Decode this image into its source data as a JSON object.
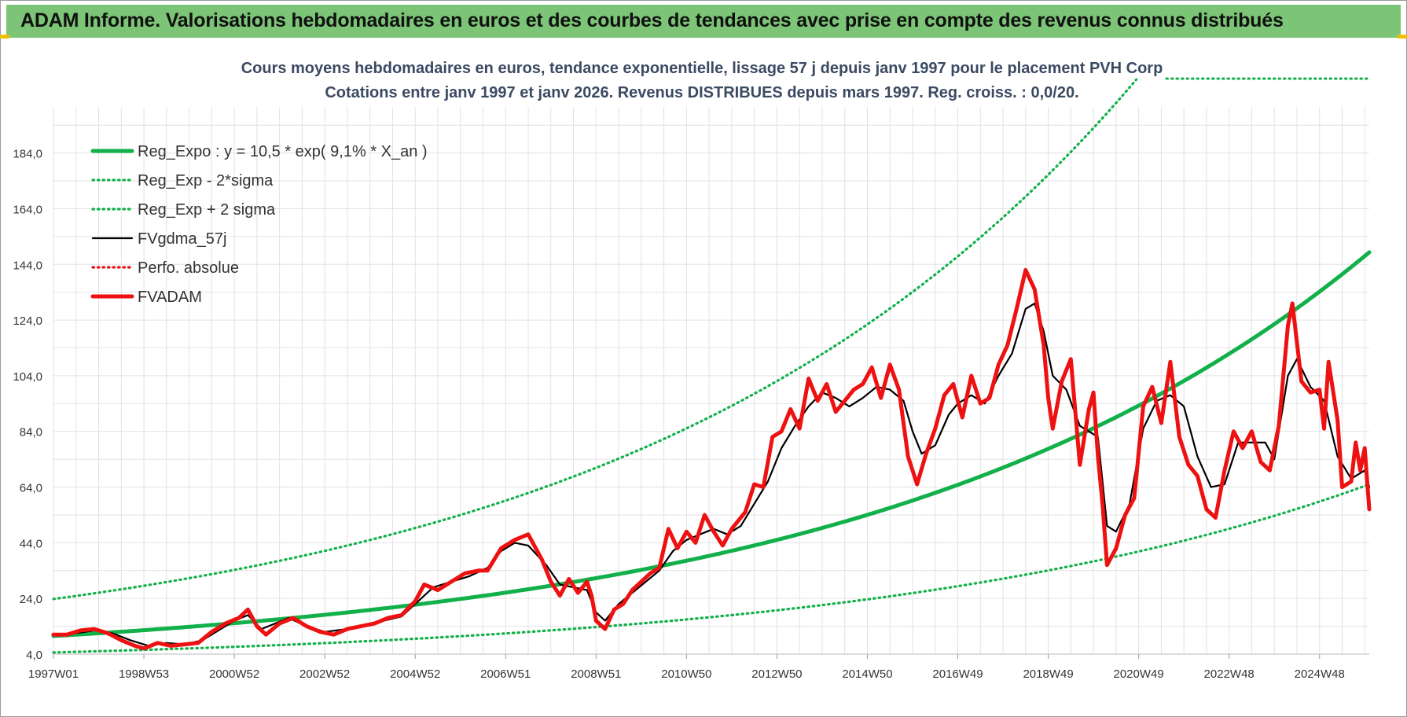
{
  "banner": {
    "title": "ADAM Informe. Valorisations hebdomadaires en euros et des courbes de tendances avec prise en compte des revenus connus distribués"
  },
  "chart_data": {
    "type": "line",
    "title": "Cours moyens hebdomadaires en euros, tendance exponentielle, lissage 57 j depuis janv 1997 pour le placement PVH Corp",
    "subtitle": "Cotations entre janv 1997 et janv 2026. Revenus DISTRIBUES depuis mars 1997.  Reg. croiss. : 0,0/20.",
    "xlabel": "",
    "ylabel": "",
    "x_ticks": [
      "1997W01",
      "1998W53",
      "2000W52",
      "2002W52",
      "2004W52",
      "2006W51",
      "2008W51",
      "2010W50",
      "2012W50",
      "2014W50",
      "2016W49",
      "2018W49",
      "2020W49",
      "2022W48",
      "2024W48"
    ],
    "y_ticks": [
      "4,0",
      "24,0",
      "44,0",
      "64,0",
      "84,0",
      "104,0",
      "124,0",
      "144,0",
      "164,0",
      "184,0"
    ],
    "ylim": [
      4,
      200
    ],
    "xlim": [
      1997.0,
      2026.1
    ],
    "grid": true,
    "legend_position": "top-left",
    "series": [
      {
        "name": "Reg_Expo : y = 10,5 * exp( 9,1% *  X_an )",
        "color": "#12b04a",
        "style": "solid-thick",
        "formula": {
          "a": 10.5,
          "b": 0.091,
          "start": 1997.0
        }
      },
      {
        "name": "Reg_Exp - 2*sigma",
        "color": "#12b04a",
        "style": "dotted",
        "formula": {
          "a": 4.6,
          "b": 0.091,
          "start": 1997.0
        }
      },
      {
        "name": "Reg_Exp + 2 sigma",
        "color": "#12b04a",
        "style": "dotted",
        "formula": {
          "a": 23.8,
          "b": 0.091,
          "start": 1997.0
        }
      },
      {
        "name": "FVgdma_57j",
        "color": "#000000",
        "style": "solid",
        "points": [
          [
            1997.0,
            11
          ],
          [
            1997.5,
            11.5
          ],
          [
            1997.9,
            12.5
          ],
          [
            1998.3,
            11.5
          ],
          [
            1998.7,
            9
          ],
          [
            1999.1,
            7
          ],
          [
            1999.5,
            8
          ],
          [
            1999.9,
            7.5
          ],
          [
            2000.3,
            9
          ],
          [
            2000.7,
            13
          ],
          [
            2001.0,
            16
          ],
          [
            2001.3,
            18
          ],
          [
            2001.6,
            13
          ],
          [
            2001.9,
            15
          ],
          [
            2002.2,
            17
          ],
          [
            2002.6,
            14
          ],
          [
            2003.0,
            12
          ],
          [
            2003.5,
            13
          ],
          [
            2003.9,
            14
          ],
          [
            2004.3,
            16
          ],
          [
            2004.7,
            17.5
          ],
          [
            2005.0,
            22
          ],
          [
            2005.4,
            28
          ],
          [
            2005.8,
            30
          ],
          [
            2006.2,
            32
          ],
          [
            2006.6,
            35
          ],
          [
            2006.9,
            41
          ],
          [
            2007.2,
            44
          ],
          [
            2007.5,
            43
          ],
          [
            2007.9,
            36
          ],
          [
            2008.2,
            29
          ],
          [
            2008.5,
            28
          ],
          [
            2008.8,
            27
          ],
          [
            2009.0,
            19
          ],
          [
            2009.2,
            16
          ],
          [
            2009.5,
            22
          ],
          [
            2009.8,
            26
          ],
          [
            2010.1,
            30
          ],
          [
            2010.4,
            34
          ],
          [
            2010.7,
            41
          ],
          [
            2011.0,
            45
          ],
          [
            2011.3,
            47
          ],
          [
            2011.6,
            49
          ],
          [
            2011.9,
            47
          ],
          [
            2012.2,
            50
          ],
          [
            2012.5,
            58
          ],
          [
            2012.8,
            66
          ],
          [
            2013.1,
            78
          ],
          [
            2013.4,
            86
          ],
          [
            2013.7,
            93
          ],
          [
            2014.0,
            98
          ],
          [
            2014.3,
            96
          ],
          [
            2014.6,
            93
          ],
          [
            2014.9,
            96
          ],
          [
            2015.2,
            100
          ],
          [
            2015.5,
            99
          ],
          [
            2015.8,
            95
          ],
          [
            2016.0,
            84
          ],
          [
            2016.2,
            76
          ],
          [
            2016.5,
            79
          ],
          [
            2016.8,
            90
          ],
          [
            2017.0,
            94
          ],
          [
            2017.3,
            97
          ],
          [
            2017.6,
            94
          ],
          [
            2017.9,
            104
          ],
          [
            2018.2,
            112
          ],
          [
            2018.5,
            128
          ],
          [
            2018.7,
            130
          ],
          [
            2018.9,
            120
          ],
          [
            2019.1,
            104
          ],
          [
            2019.4,
            99
          ],
          [
            2019.7,
            86
          ],
          [
            2019.9,
            84
          ],
          [
            2020.1,
            82
          ],
          [
            2020.3,
            50
          ],
          [
            2020.5,
            48
          ],
          [
            2020.8,
            58
          ],
          [
            2021.1,
            85
          ],
          [
            2021.4,
            95
          ],
          [
            2021.7,
            97
          ],
          [
            2022.0,
            93
          ],
          [
            2022.3,
            75
          ],
          [
            2022.6,
            64
          ],
          [
            2022.9,
            65
          ],
          [
            2023.2,
            80
          ],
          [
            2023.5,
            80
          ],
          [
            2023.8,
            80
          ],
          [
            2024.0,
            74
          ],
          [
            2024.3,
            104
          ],
          [
            2024.5,
            110
          ],
          [
            2024.8,
            100
          ],
          [
            2025.1,
            95
          ],
          [
            2025.4,
            75
          ],
          [
            2025.7,
            67
          ],
          [
            2026.0,
            70
          ],
          [
            2026.1,
            64
          ]
        ]
      },
      {
        "name": "Perfo. absolue",
        "color": "#e81010",
        "style": "dotted",
        "points": []
      },
      {
        "name": "FVADAM",
        "color": "#ee1111",
        "style": "solid-thick",
        "points": [
          [
            1997.0,
            11
          ],
          [
            1997.3,
            11
          ],
          [
            1997.6,
            12.5
          ],
          [
            1997.9,
            13
          ],
          [
            1998.2,
            11.5
          ],
          [
            1998.5,
            9
          ],
          [
            1998.8,
            7
          ],
          [
            1999.0,
            6
          ],
          [
            1999.3,
            8
          ],
          [
            1999.6,
            7
          ],
          [
            1999.9,
            7.5
          ],
          [
            2000.2,
            8
          ],
          [
            2000.5,
            12
          ],
          [
            2000.8,
            15
          ],
          [
            2001.1,
            17
          ],
          [
            2001.3,
            20
          ],
          [
            2001.5,
            14
          ],
          [
            2001.7,
            11
          ],
          [
            2002.0,
            15
          ],
          [
            2002.3,
            17
          ],
          [
            2002.6,
            14
          ],
          [
            2002.9,
            12
          ],
          [
            2003.2,
            11
          ],
          [
            2003.5,
            13
          ],
          [
            2003.8,
            14
          ],
          [
            2004.1,
            15
          ],
          [
            2004.4,
            17
          ],
          [
            2004.7,
            18
          ],
          [
            2005.0,
            23
          ],
          [
            2005.2,
            29
          ],
          [
            2005.5,
            27
          ],
          [
            2005.8,
            30
          ],
          [
            2006.1,
            33
          ],
          [
            2006.4,
            34
          ],
          [
            2006.6,
            34
          ],
          [
            2006.9,
            42
          ],
          [
            2007.2,
            45
          ],
          [
            2007.5,
            47
          ],
          [
            2007.8,
            38
          ],
          [
            2008.0,
            30
          ],
          [
            2008.2,
            25
          ],
          [
            2008.4,
            31
          ],
          [
            2008.6,
            26
          ],
          [
            2008.8,
            30
          ],
          [
            2008.9,
            25
          ],
          [
            2009.0,
            16
          ],
          [
            2009.2,
            13
          ],
          [
            2009.4,
            20
          ],
          [
            2009.6,
            22
          ],
          [
            2009.8,
            27
          ],
          [
            2010.0,
            30
          ],
          [
            2010.2,
            33
          ],
          [
            2010.4,
            35
          ],
          [
            2010.6,
            49
          ],
          [
            2010.8,
            42
          ],
          [
            2011.0,
            48
          ],
          [
            2011.2,
            44
          ],
          [
            2011.4,
            54
          ],
          [
            2011.6,
            48
          ],
          [
            2011.8,
            43
          ],
          [
            2012.0,
            49
          ],
          [
            2012.3,
            55
          ],
          [
            2012.5,
            65
          ],
          [
            2012.7,
            64
          ],
          [
            2012.9,
            82
          ],
          [
            2013.1,
            84
          ],
          [
            2013.3,
            92
          ],
          [
            2013.5,
            85
          ],
          [
            2013.7,
            103
          ],
          [
            2013.9,
            95
          ],
          [
            2014.1,
            101
          ],
          [
            2014.3,
            91
          ],
          [
            2014.5,
            95
          ],
          [
            2014.7,
            99
          ],
          [
            2014.9,
            101
          ],
          [
            2015.1,
            107
          ],
          [
            2015.3,
            96
          ],
          [
            2015.5,
            108
          ],
          [
            2015.7,
            99
          ],
          [
            2015.9,
            75
          ],
          [
            2016.1,
            65
          ],
          [
            2016.3,
            76
          ],
          [
            2016.5,
            85
          ],
          [
            2016.7,
            97
          ],
          [
            2016.9,
            101
          ],
          [
            2017.1,
            89
          ],
          [
            2017.3,
            104
          ],
          [
            2017.5,
            94
          ],
          [
            2017.7,
            96
          ],
          [
            2017.9,
            108
          ],
          [
            2018.1,
            115
          ],
          [
            2018.3,
            128
          ],
          [
            2018.5,
            142
          ],
          [
            2018.7,
            135
          ],
          [
            2018.9,
            115
          ],
          [
            2019.0,
            96
          ],
          [
            2019.1,
            85
          ],
          [
            2019.3,
            102
          ],
          [
            2019.5,
            110
          ],
          [
            2019.7,
            72
          ],
          [
            2019.9,
            92
          ],
          [
            2020.0,
            98
          ],
          [
            2020.1,
            75
          ],
          [
            2020.2,
            58
          ],
          [
            2020.3,
            36
          ],
          [
            2020.5,
            42
          ],
          [
            2020.7,
            54
          ],
          [
            2020.9,
            60
          ],
          [
            2021.1,
            93
          ],
          [
            2021.3,
            100
          ],
          [
            2021.5,
            87
          ],
          [
            2021.7,
            109
          ],
          [
            2021.9,
            82
          ],
          [
            2022.1,
            72
          ],
          [
            2022.3,
            68
          ],
          [
            2022.5,
            56
          ],
          [
            2022.7,
            53
          ],
          [
            2022.9,
            70
          ],
          [
            2023.1,
            84
          ],
          [
            2023.3,
            78
          ],
          [
            2023.5,
            84
          ],
          [
            2023.7,
            73
          ],
          [
            2023.9,
            70
          ],
          [
            2024.1,
            86
          ],
          [
            2024.3,
            122
          ],
          [
            2024.4,
            130
          ],
          [
            2024.6,
            102
          ],
          [
            2024.8,
            98
          ],
          [
            2025.0,
            99
          ],
          [
            2025.1,
            85
          ],
          [
            2025.2,
            109
          ],
          [
            2025.4,
            88
          ],
          [
            2025.5,
            64
          ],
          [
            2025.7,
            66
          ],
          [
            2025.8,
            80
          ],
          [
            2025.9,
            70
          ],
          [
            2026.0,
            78
          ],
          [
            2026.1,
            56
          ]
        ]
      }
    ]
  }
}
